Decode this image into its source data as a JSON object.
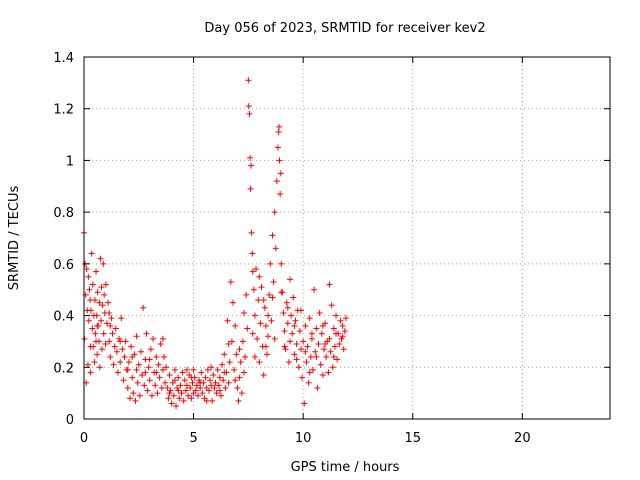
{
  "chart_data": {
    "type": "scatter",
    "title": "Day 056 of 2023, SRMTID for receiver kev2",
    "xlabel": "GPS time / hours",
    "ylabel": "SRMTID / TECUs",
    "xlim": [
      0,
      24
    ],
    "ylim": [
      0,
      1.4
    ],
    "x_ticks": [
      0,
      5,
      10,
      15,
      20
    ],
    "y_ticks": [
      0,
      0.2,
      0.4,
      0.6,
      0.8,
      1.0,
      1.2,
      1.4
    ],
    "x_tick_labels": [
      "0",
      "5",
      "10",
      "15",
      "20"
    ],
    "y_tick_labels": [
      "0",
      "0.2",
      "0.4",
      "0.6",
      "0.8",
      "1",
      "1.2",
      "1.4"
    ],
    "grid": true,
    "marker": "+",
    "series": [
      {
        "name": "SRMTID",
        "color": "#ff0000",
        "points": [
          [
            0.0,
            0.72
          ],
          [
            0.02,
            0.31
          ],
          [
            0.05,
            0.6
          ],
          [
            0.08,
            0.48
          ],
          [
            0.1,
            0.14
          ],
          [
            0.12,
            0.58
          ],
          [
            0.15,
            0.42
          ],
          [
            0.18,
            0.21
          ],
          [
            0.2,
            0.55
          ],
          [
            0.22,
            0.38
          ],
          [
            0.25,
            0.5
          ],
          [
            0.28,
            0.46
          ],
          [
            0.3,
            0.18
          ],
          [
            0.32,
            0.42
          ],
          [
            0.35,
            0.64
          ],
          [
            0.38,
            0.35
          ],
          [
            0.4,
            0.52
          ],
          [
            0.42,
            0.28
          ],
          [
            0.45,
            0.4
          ],
          [
            0.48,
            0.22
          ],
          [
            0.5,
            0.46
          ],
          [
            0.52,
            0.33
          ],
          [
            0.55,
            0.57
          ],
          [
            0.58,
            0.4
          ],
          [
            0.6,
            0.25
          ],
          [
            0.62,
            0.49
          ],
          [
            0.65,
            0.36
          ],
          [
            0.68,
            0.3
          ],
          [
            0.7,
            0.45
          ],
          [
            0.72,
            0.2
          ],
          [
            0.75,
            0.62
          ],
          [
            0.78,
            0.38
          ],
          [
            0.8,
            0.51
          ],
          [
            0.82,
            0.27
          ],
          [
            0.85,
            0.44
          ],
          [
            0.88,
            0.6
          ],
          [
            0.9,
            0.33
          ],
          [
            0.92,
            0.48
          ],
          [
            0.95,
            0.41
          ],
          [
            0.98,
            0.29
          ],
          [
            1.0,
            0.52
          ],
          [
            1.05,
            0.37
          ],
          [
            1.1,
            0.45
          ],
          [
            1.15,
            0.3
          ],
          [
            1.2,
            0.24
          ],
          [
            1.25,
            0.39
          ],
          [
            1.3,
            0.33
          ],
          [
            1.35,
            0.21
          ],
          [
            1.4,
            0.28
          ],
          [
            1.45,
            0.35
          ],
          [
            1.5,
            0.26
          ],
          [
            1.55,
            0.18
          ],
          [
            1.6,
            0.31
          ],
          [
            1.65,
            0.22
          ],
          [
            1.7,
            0.39
          ],
          [
            1.75,
            0.27
          ],
          [
            1.8,
            0.15
          ],
          [
            1.85,
            0.24
          ],
          [
            1.9,
            0.3
          ],
          [
            1.95,
            0.19
          ],
          [
            2.0,
            0.12
          ],
          [
            2.05,
            0.22
          ],
          [
            2.1,
            0.08
          ],
          [
            2.15,
            0.28
          ],
          [
            2.2,
            0.16
          ],
          [
            2.25,
            0.1
          ],
          [
            2.3,
            0.25
          ],
          [
            2.35,
            0.07
          ],
          [
            2.4,
            0.19
          ],
          [
            2.45,
            0.14
          ],
          [
            2.5,
            0.21
          ],
          [
            2.55,
            0.09
          ],
          [
            2.6,
            0.26
          ],
          [
            2.65,
            0.17
          ],
          [
            2.7,
            0.43
          ],
          [
            2.75,
            0.13
          ],
          [
            2.8,
            0.23
          ],
          [
            2.85,
            0.33
          ],
          [
            2.9,
            0.11
          ],
          [
            2.95,
            0.2
          ],
          [
            3.0,
            0.15
          ],
          [
            3.05,
            0.27
          ],
          [
            3.1,
            0.09
          ],
          [
            3.15,
            0.31
          ],
          [
            3.2,
            0.18
          ],
          [
            3.25,
            0.13
          ],
          [
            3.3,
            0.24
          ],
          [
            3.35,
            0.1
          ],
          [
            3.4,
            0.21
          ],
          [
            3.45,
            0.16
          ],
          [
            3.5,
            0.29
          ],
          [
            3.55,
            0.12
          ],
          [
            3.6,
            0.19
          ],
          [
            3.65,
            0.24
          ],
          [
            3.7,
            0.14
          ],
          [
            3.75,
            0.2
          ],
          [
            3.8,
            0.12
          ],
          [
            3.85,
            0.08
          ],
          [
            3.9,
            0.17
          ],
          [
            3.95,
            0.11
          ],
          [
            4.0,
            0.06
          ],
          [
            4.05,
            0.14
          ],
          [
            4.1,
            0.09
          ],
          [
            4.15,
            0.19
          ],
          [
            4.2,
            0.05
          ],
          [
            4.25,
            0.12
          ],
          [
            4.3,
            0.16
          ],
          [
            4.35,
            0.08
          ],
          [
            4.4,
            0.13
          ],
          [
            4.45,
            0.1
          ],
          [
            4.5,
            0.18
          ],
          [
            4.55,
            0.07
          ],
          [
            4.6,
            0.15
          ],
          [
            4.65,
            0.11
          ],
          [
            4.7,
            0.13
          ],
          [
            4.75,
            0.09
          ],
          [
            4.8,
            0.17
          ],
          [
            4.85,
            0.12
          ],
          [
            4.9,
            0.08
          ],
          [
            4.95,
            0.14
          ],
          [
            5.0,
            0.1
          ],
          [
            5.05,
            0.16
          ],
          [
            5.1,
            0.11
          ],
          [
            5.15,
            0.13
          ],
          [
            5.2,
            0.09
          ],
          [
            5.25,
            0.15
          ],
          [
            5.3,
            0.12
          ],
          [
            5.35,
            0.18
          ],
          [
            5.4,
            0.1
          ],
          [
            5.45,
            0.14
          ],
          [
            5.5,
            0.08
          ],
          [
            5.55,
            0.16
          ],
          [
            5.6,
            0.12
          ],
          [
            5.65,
            0.19
          ],
          [
            5.7,
            0.11
          ],
          [
            5.75,
            0.15
          ],
          [
            5.8,
            0.13
          ],
          [
            5.85,
            0.07
          ],
          [
            5.9,
            0.17
          ],
          [
            5.95,
            0.12
          ],
          [
            6.0,
            0.14
          ],
          [
            6.05,
            0.1
          ],
          [
            6.1,
            0.19
          ],
          [
            6.15,
            0.13
          ],
          [
            6.2,
            0.16
          ],
          [
            6.25,
            0.09
          ],
          [
            6.3,
            0.21
          ],
          [
            6.35,
            0.15
          ],
          [
            6.4,
            0.25
          ],
          [
            6.45,
            0.12
          ],
          [
            6.5,
            0.18
          ],
          [
            6.55,
            0.38
          ],
          [
            6.6,
            0.14
          ],
          [
            6.65,
            0.22
          ],
          [
            6.7,
            0.53
          ],
          [
            6.75,
            0.3
          ],
          [
            6.8,
            0.45
          ],
          [
            6.85,
            0.19
          ],
          [
            6.9,
            0.36
          ],
          [
            6.95,
            0.25
          ],
          [
            7.0,
            0.12
          ],
          [
            7.05,
            0.07
          ],
          [
            7.1,
            0.16
          ],
          [
            7.15,
            0.22
          ],
          [
            7.2,
            0.1
          ],
          [
            7.25,
            0.3
          ],
          [
            7.3,
            0.18
          ],
          [
            7.35,
            0.24
          ],
          [
            7.4,
            0.48
          ],
          [
            7.45,
            0.35
          ],
          [
            7.5,
            1.31
          ],
          [
            7.52,
            1.21
          ],
          [
            7.55,
            1.18
          ],
          [
            7.58,
            1.01
          ],
          [
            7.6,
            0.89
          ],
          [
            7.62,
            0.98
          ],
          [
            7.65,
            0.72
          ],
          [
            7.68,
            0.64
          ],
          [
            7.7,
            0.57
          ],
          [
            7.75,
            0.5
          ],
          [
            7.8,
            0.4
          ],
          [
            7.85,
            0.58
          ],
          [
            7.9,
            0.31
          ],
          [
            7.95,
            0.46
          ],
          [
            8.0,
            0.22
          ],
          [
            8.05,
            0.37
          ],
          [
            8.1,
            0.51
          ],
          [
            8.15,
            0.28
          ],
          [
            8.2,
            0.17
          ],
          [
            8.25,
            0.43
          ],
          [
            8.3,
            0.36
          ],
          [
            8.35,
            0.25
          ],
          [
            8.4,
            0.32
          ],
          [
            8.45,
            0.48
          ],
          [
            8.5,
            0.6
          ],
          [
            8.55,
            0.38
          ],
          [
            8.6,
            0.71
          ],
          [
            8.65,
            0.53
          ],
          [
            8.7,
            0.8
          ],
          [
            8.75,
            0.66
          ],
          [
            8.8,
            0.92
          ],
          [
            8.85,
            1.05
          ],
          [
            8.88,
            1.11
          ],
          [
            8.9,
            1.13
          ],
          [
            8.92,
            1.0
          ],
          [
            8.95,
            0.87
          ],
          [
            8.98,
            0.95
          ],
          [
            9.0,
            0.6
          ],
          [
            9.05,
            0.49
          ],
          [
            9.1,
            0.41
          ],
          [
            9.15,
            0.34
          ],
          [
            9.2,
            0.27
          ],
          [
            9.25,
            0.45
          ],
          [
            9.3,
            0.37
          ],
          [
            9.35,
            0.22
          ],
          [
            9.4,
            0.3
          ],
          [
            9.45,
            0.4
          ],
          [
            9.5,
            0.33
          ],
          [
            9.55,
            0.47
          ],
          [
            9.6,
            0.25
          ],
          [
            9.65,
            0.38
          ],
          [
            9.7,
            0.29
          ],
          [
            9.75,
            0.42
          ],
          [
            9.8,
            0.2
          ],
          [
            9.85,
            0.34
          ],
          [
            9.9,
            0.27
          ],
          [
            9.95,
            0.16
          ],
          [
            10.0,
            0.3
          ],
          [
            10.05,
            0.06
          ],
          [
            10.1,
            0.36
          ],
          [
            10.15,
            0.22
          ],
          [
            10.2,
            0.28
          ],
          [
            10.25,
            0.14
          ],
          [
            10.3,
            0.39
          ],
          [
            10.35,
            0.24
          ],
          [
            10.4,
            0.31
          ],
          [
            10.45,
            0.19
          ],
          [
            10.5,
            0.5
          ],
          [
            10.55,
            0.26
          ],
          [
            10.6,
            0.35
          ],
          [
            10.65,
            0.12
          ],
          [
            10.7,
            0.29
          ],
          [
            10.75,
            0.41
          ],
          [
            10.8,
            0.21
          ],
          [
            10.85,
            0.33
          ],
          [
            10.9,
            0.17
          ],
          [
            10.95,
            0.27
          ],
          [
            11.0,
            0.37
          ],
          [
            11.05,
            0.24
          ],
          [
            11.1,
            0.3
          ],
          [
            11.15,
            0.18
          ],
          [
            11.2,
            0.52
          ],
          [
            11.25,
            0.26
          ],
          [
            11.3,
            0.44
          ],
          [
            11.35,
            0.2
          ],
          [
            11.4,
            0.35
          ],
          [
            11.45,
            0.28
          ],
          [
            11.5,
            0.4
          ],
          [
            11.55,
            0.23
          ],
          [
            11.6,
            0.33
          ],
          [
            11.65,
            0.29
          ],
          [
            11.7,
            0.38
          ],
          [
            11.75,
            0.31
          ],
          [
            11.8,
            0.36
          ],
          [
            11.85,
            0.27
          ],
          [
            11.9,
            0.34
          ],
          [
            0.3,
            0.28
          ],
          [
            0.6,
            0.36
          ],
          [
            1.2,
            0.36
          ],
          [
            2.2,
            0.24
          ],
          [
            2.8,
            0.18
          ],
          [
            3.3,
            0.18
          ],
          [
            4.3,
            0.11
          ],
          [
            4.9,
            0.16
          ],
          [
            5.6,
            0.07
          ],
          [
            6.2,
            0.11
          ],
          [
            7.1,
            0.27
          ],
          [
            8.3,
            0.28
          ],
          [
            9.3,
            0.43
          ],
          [
            9.6,
            0.36
          ],
          [
            10.1,
            0.26
          ],
          [
            10.6,
            0.24
          ],
          [
            11.0,
            0.29
          ],
          [
            11.4,
            0.24
          ],
          [
            11.8,
            0.32
          ],
          [
            8.0,
            0.55
          ],
          [
            8.6,
            0.47
          ],
          [
            9.0,
            0.49
          ],
          [
            9.4,
            0.54
          ],
          [
            10.4,
            0.33
          ],
          [
            0.55,
            0.3
          ],
          [
            1.15,
            0.41
          ],
          [
            1.65,
            0.3
          ],
          [
            2.4,
            0.32
          ],
          [
            3.0,
            0.23
          ],
          [
            3.6,
            0.31
          ],
          [
            4.15,
            0.15
          ],
          [
            4.7,
            0.19
          ],
          [
            5.3,
            0.14
          ],
          [
            5.8,
            0.2
          ],
          [
            6.4,
            0.18
          ],
          [
            6.9,
            0.15
          ],
          [
            7.3,
            0.41
          ],
          [
            7.7,
            0.33
          ],
          [
            8.2,
            0.46
          ],
          [
            8.7,
            0.31
          ],
          [
            9.15,
            0.28
          ],
          [
            9.7,
            0.23
          ],
          [
            10.3,
            0.18
          ],
          [
            10.9,
            0.36
          ],
          [
            11.5,
            0.33
          ],
          [
            11.95,
            0.39
          ],
          [
            2.0,
            0.19
          ],
          [
            3.9,
            0.1
          ],
          [
            5.0,
            0.19
          ],
          [
            6.6,
            0.29
          ],
          [
            7.8,
            0.24
          ],
          [
            8.4,
            0.4
          ],
          [
            9.9,
            0.42
          ],
          [
            11.2,
            0.31
          ]
        ]
      }
    ]
  }
}
